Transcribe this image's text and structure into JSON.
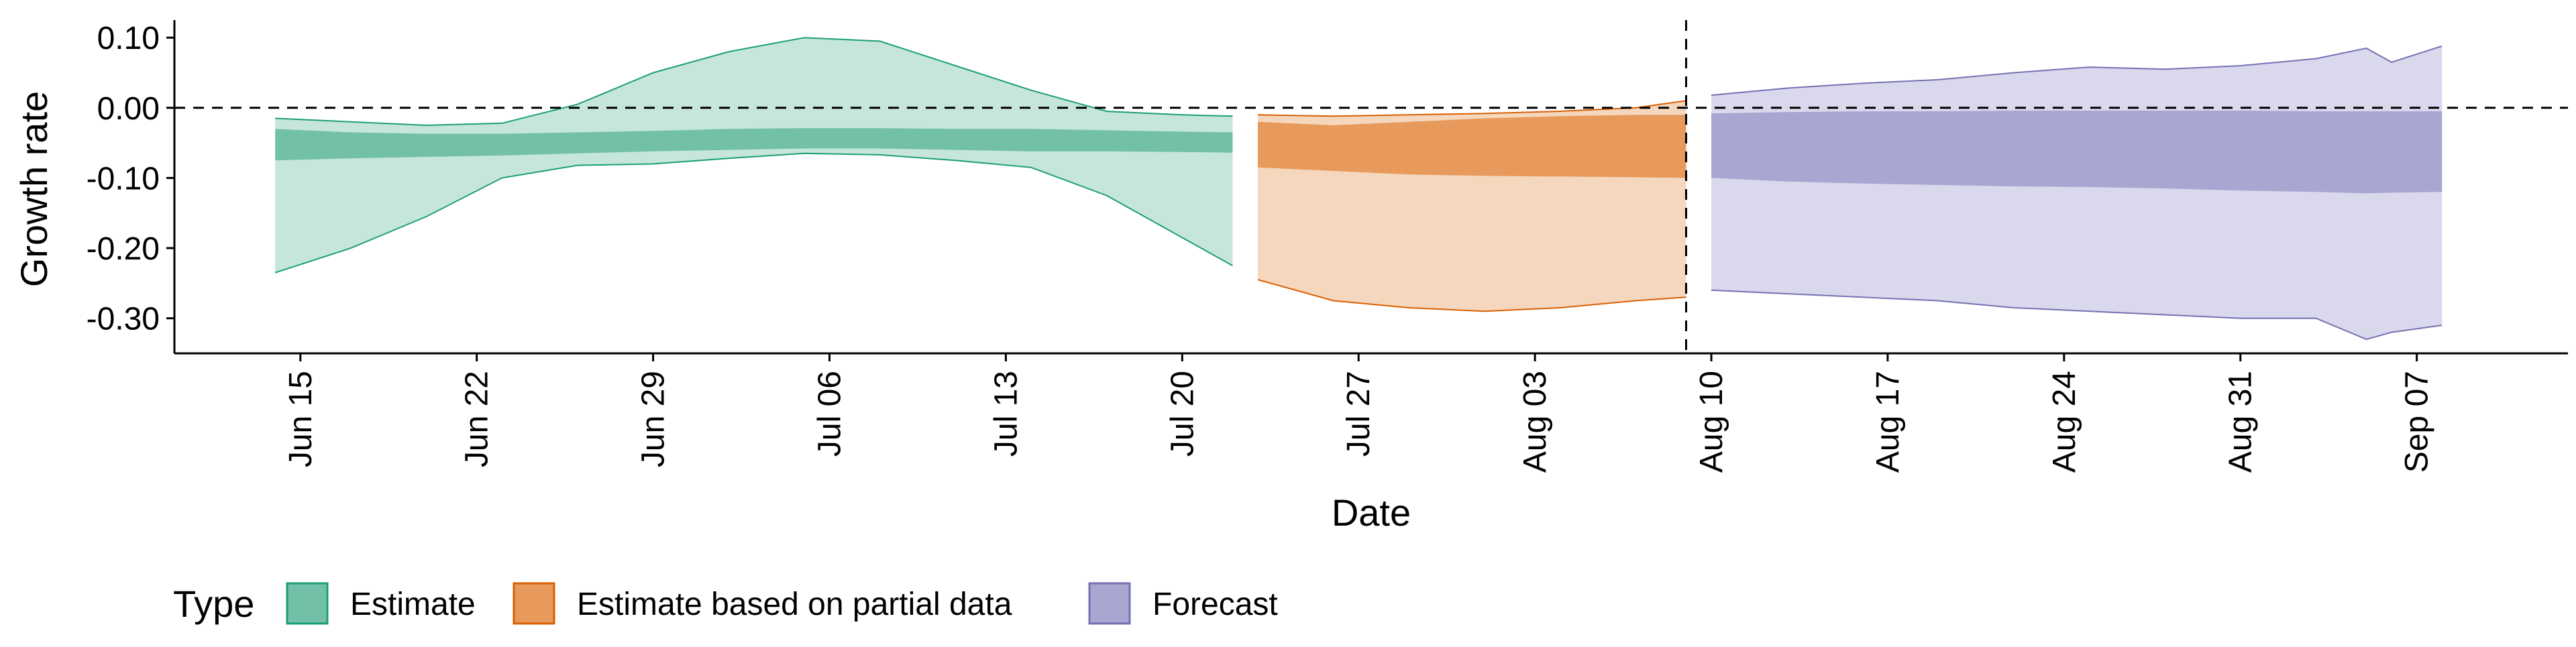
{
  "chart_data": {
    "type": "area",
    "title": "",
    "xlabel": "Date",
    "ylabel": "Growth rate",
    "x_ticks": [
      "Jun 15",
      "Jun 22",
      "Jun 29",
      "Jul 06",
      "Jul 13",
      "Jul 20",
      "Jul 27",
      "Aug 03",
      "Aug 10",
      "Aug 17",
      "Aug 24",
      "Aug 31",
      "Sep 07"
    ],
    "y_ticks": [
      "0.10",
      "0.00",
      "-0.10",
      "-0.20",
      "-0.30"
    ],
    "xlim": [
      "2020-06-10",
      "2020-09-13"
    ],
    "ylim": [
      -0.35,
      0.125
    ],
    "grid": false,
    "reference_lines": {
      "horizontal_y": 0.0,
      "vertical_date": "2020-08-09"
    },
    "legend": {
      "title": "Type",
      "position": "bottom",
      "entries": [
        "Estimate",
        "Estimate based on partial data",
        "Forecast"
      ]
    },
    "series": [
      {
        "name": "Estimate",
        "color": "#1B9E77",
        "fill_inner": "#73C0A8",
        "fill_outer": "#C6E6DC",
        "dates": [
          "2020-06-14",
          "2020-06-17",
          "2020-06-20",
          "2020-06-23",
          "2020-06-26",
          "2020-06-29",
          "2020-07-02",
          "2020-07-05",
          "2020-07-08",
          "2020-07-11",
          "2020-07-14",
          "2020-07-17",
          "2020-07-20",
          "2020-07-22"
        ],
        "lower_90": [
          -0.235,
          -0.2,
          -0.155,
          -0.1,
          -0.082,
          -0.08,
          -0.072,
          -0.065,
          -0.067,
          -0.075,
          -0.085,
          -0.125,
          -0.185,
          -0.225
        ],
        "lower_50": [
          -0.075,
          -0.072,
          -0.07,
          -0.068,
          -0.065,
          -0.062,
          -0.06,
          -0.058,
          -0.058,
          -0.06,
          -0.062,
          -0.062,
          -0.063,
          -0.064
        ],
        "upper_50": [
          -0.03,
          -0.035,
          -0.037,
          -0.037,
          -0.035,
          -0.033,
          -0.03,
          -0.029,
          -0.029,
          -0.03,
          -0.03,
          -0.032,
          -0.034,
          -0.035
        ],
        "upper_90": [
          -0.015,
          -0.02,
          -0.025,
          -0.022,
          0.005,
          0.05,
          0.08,
          0.1,
          0.095,
          0.06,
          0.025,
          -0.005,
          -0.01,
          -0.012
        ]
      },
      {
        "name": "Estimate based on partial data",
        "color": "#D95F02",
        "fill_inner": "#E79A5B",
        "fill_outer": "#F5D7BE",
        "dates": [
          "2020-07-23",
          "2020-07-26",
          "2020-07-29",
          "2020-08-01",
          "2020-08-04",
          "2020-08-07",
          "2020-08-09"
        ],
        "lower_90": [
          -0.245,
          -0.275,
          -0.285,
          -0.29,
          -0.285,
          -0.275,
          -0.27
        ],
        "lower_50": [
          -0.085,
          -0.09,
          -0.095,
          -0.097,
          -0.098,
          -0.099,
          -0.1
        ],
        "upper_50": [
          -0.02,
          -0.025,
          -0.02,
          -0.015,
          -0.012,
          -0.01,
          -0.01
        ],
        "upper_90": [
          -0.01,
          -0.012,
          -0.01,
          -0.008,
          -0.005,
          0.0,
          0.01
        ]
      },
      {
        "name": "Forecast",
        "color": "#7570B3",
        "fill_inner": "#A9A6D1",
        "fill_outer": "#DAD8EC",
        "dates": [
          "2020-08-10",
          "2020-08-13",
          "2020-08-16",
          "2020-08-19",
          "2020-08-22",
          "2020-08-25",
          "2020-08-28",
          "2020-08-31",
          "2020-09-03",
          "2020-09-05",
          "2020-09-06",
          "2020-09-08"
        ],
        "lower_90": [
          -0.26,
          -0.265,
          -0.27,
          -0.275,
          -0.285,
          -0.29,
          -0.295,
          -0.3,
          -0.3,
          -0.33,
          -0.32,
          -0.31
        ],
        "lower_50": [
          -0.1,
          -0.105,
          -0.108,
          -0.11,
          -0.112,
          -0.113,
          -0.115,
          -0.118,
          -0.12,
          -0.122,
          -0.121,
          -0.12
        ],
        "upper_50": [
          -0.008,
          -0.006,
          -0.005,
          -0.005,
          -0.004,
          -0.004,
          -0.004,
          -0.004,
          -0.005,
          -0.005,
          -0.005,
          -0.005
        ],
        "upper_90": [
          0.018,
          0.028,
          0.035,
          0.04,
          0.05,
          0.058,
          0.055,
          0.06,
          0.07,
          0.085,
          0.065,
          0.088
        ]
      }
    ]
  }
}
